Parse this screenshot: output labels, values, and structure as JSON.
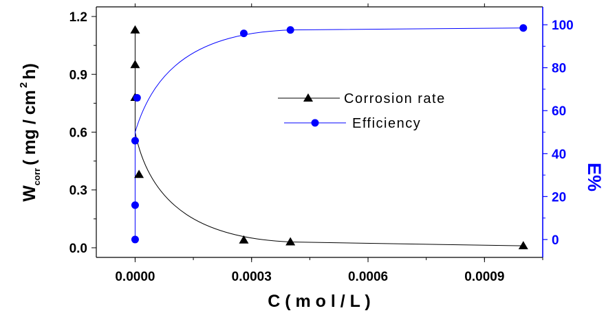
{
  "chart_data": {
    "type": "line",
    "xlabel": "C ( m o l / L )",
    "ylabel_main": "W",
    "ylabel_sub": "corr",
    "ylabel_units_pre": "( mg / cm",
    "ylabel_sup": "2",
    "ylabel_units_post": "h)",
    "y2label": "E%",
    "xlim": [
      -0.0001,
      0.00105
    ],
    "ylim": [
      -0.05,
      1.25
    ],
    "y2lim": [
      -8.333,
      108.333
    ],
    "x_ticks": [
      0.0,
      0.0003,
      0.0006,
      0.0009
    ],
    "x_tick_labels": [
      "0.0000",
      "0.0003",
      "0.0006",
      "0.0009"
    ],
    "y_ticks": [
      0.0,
      0.3,
      0.6,
      0.9,
      1.2
    ],
    "y_tick_labels": [
      "0.0",
      "0.3",
      "0.6",
      "0.9",
      "1.2"
    ],
    "y2_ticks": [
      0,
      20,
      40,
      60,
      80,
      100
    ],
    "y2_tick_labels": [
      "0",
      "20",
      "40",
      "60",
      "80",
      "100"
    ],
    "series": [
      {
        "name": "Corrosion rate",
        "axis": "left",
        "marker": "triangle",
        "color": "#000000",
        "x": [
          0.0,
          0.0,
          0.0,
          1e-05,
          0.00028,
          0.0004,
          0.001
        ],
        "y": [
          1.13,
          0.95,
          0.78,
          0.38,
          0.04,
          0.03,
          0.01
        ]
      },
      {
        "name": "Efficiency",
        "axis": "right",
        "marker": "circle",
        "color": "#0000ff",
        "x": [
          0.0,
          0.0,
          0.0,
          5e-06,
          0.00028,
          0.0004,
          0.001
        ],
        "y": [
          0.0,
          16.0,
          46.0,
          66.0,
          96.0,
          97.6,
          98.5
        ]
      }
    ],
    "legend_position": "center-right",
    "grid": false
  },
  "colors": {
    "primary_axis": "#000000",
    "secondary_axis": "#0000ff"
  }
}
